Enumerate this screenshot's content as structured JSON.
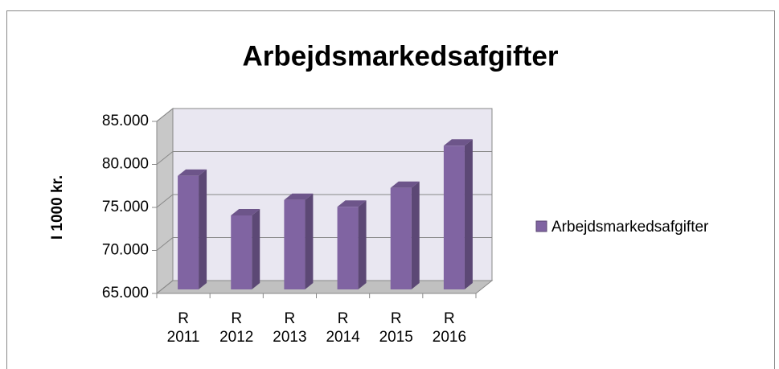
{
  "chart_data": {
    "type": "bar3d",
    "title": "Arbejdsmarkedsafgifter",
    "y_axis_label": "I 1000 kr.",
    "categories": [
      "R 2011",
      "R 2012",
      "R 2013",
      "R 2014",
      "R 2015",
      "R 2016"
    ],
    "series": [
      {
        "name": "Arbejdsmarkedsafgifter",
        "color": "#8064a2",
        "values": [
          78200,
          73600,
          75400,
          74600,
          76800,
          81700
        ]
      }
    ],
    "ylim": [
      65000,
      85000
    ],
    "yticks": [
      {
        "value": 65000,
        "label": "65.000"
      },
      {
        "value": 70000,
        "label": "70.000"
      },
      {
        "value": 75000,
        "label": "75.000"
      },
      {
        "value": 80000,
        "label": "80.000"
      },
      {
        "value": 85000,
        "label": "85.000"
      }
    ],
    "grid": true,
    "legend": "right"
  }
}
